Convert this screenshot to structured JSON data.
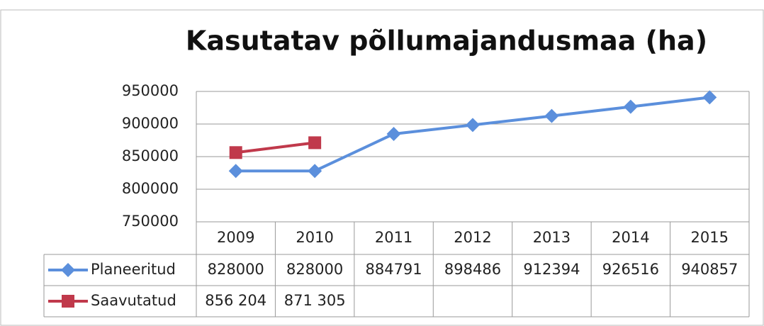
{
  "chart_data": {
    "type": "line",
    "title": "Kasutatav põllumajandusmaa (ha)",
    "categories": [
      "2009",
      "2010",
      "2011",
      "2012",
      "2013",
      "2014",
      "2015"
    ],
    "series": [
      {
        "name": "Planeeritud",
        "color": "#5b8fdc",
        "marker": "diamond",
        "values": [
          828000,
          828000,
          884791,
          898486,
          912394,
          926516,
          940857
        ]
      },
      {
        "name": "Saavutatud",
        "color": "#c0394b",
        "marker": "square",
        "values": [
          856204,
          871305,
          null,
          null,
          null,
          null,
          null
        ],
        "value_labels": [
          "856 204",
          "871 305",
          null,
          null,
          null,
          null,
          null
        ]
      }
    ],
    "ylim": [
      750000,
      950000
    ],
    "yticks": [
      750000,
      800000,
      850000,
      900000,
      950000
    ],
    "grid": true,
    "data_table": true
  }
}
